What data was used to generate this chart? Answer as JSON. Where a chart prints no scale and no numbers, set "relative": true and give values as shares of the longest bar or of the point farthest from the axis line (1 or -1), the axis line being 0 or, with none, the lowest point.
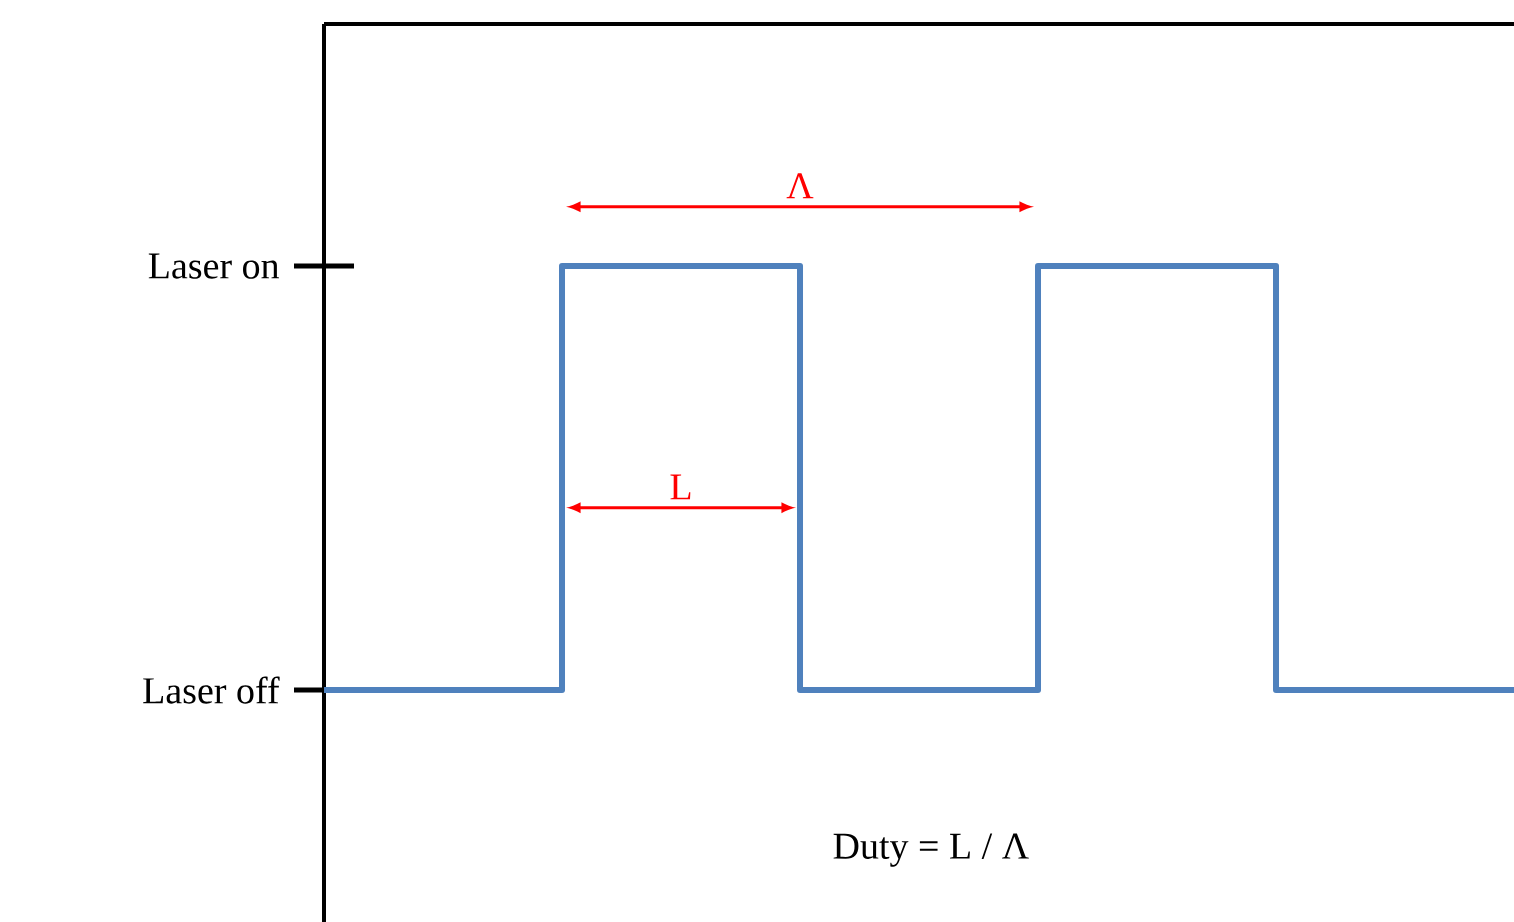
{
  "chart_data": {
    "type": "step",
    "categories": [
      null,
      null,
      null,
      null,
      null,
      null
    ],
    "series": [
      {
        "color": "#4f81bd",
        "values": [
          0,
          1,
          0,
          1,
          0,
          0
        ]
      }
    ],
    "relative": true,
    "grid": false,
    "annotations": [
      "Laser on",
      "Laser off",
      "Λ",
      "L",
      "Duty = L / Λ"
    ]
  }
}
